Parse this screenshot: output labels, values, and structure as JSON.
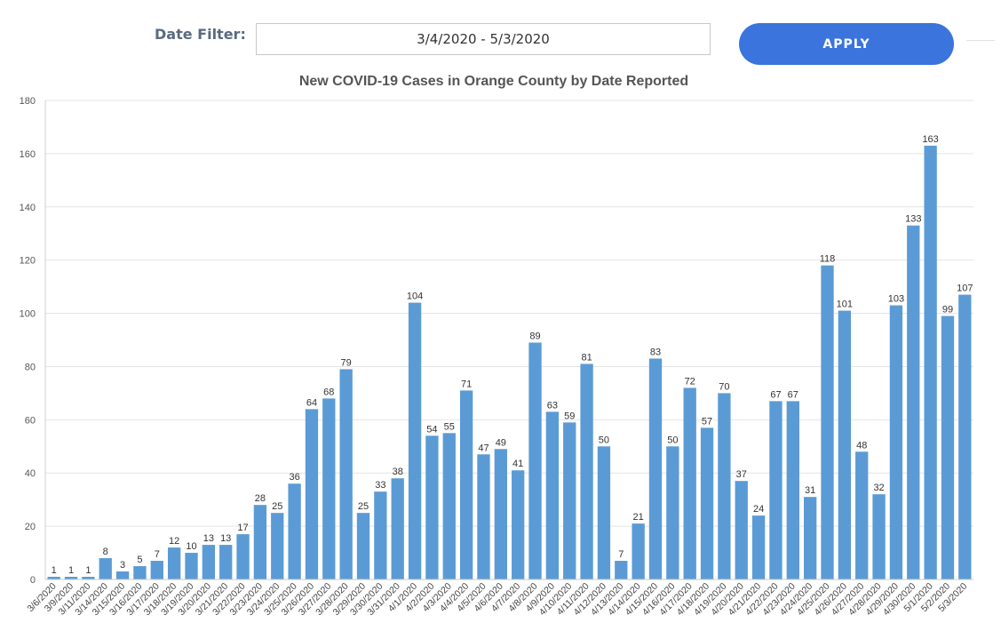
{
  "filter": {
    "label": "Date Filter:",
    "value": "3/4/2020 - 5/3/2020",
    "apply_label": "APPLY"
  },
  "colors": {
    "bar": "#5b9bd5",
    "button": "#3a74dc",
    "grid": "#e4e4e4"
  },
  "chart_data": {
    "type": "bar",
    "title": "New COVID-19 Cases in Orange County by Date Reported",
    "xlabel": "",
    "ylabel": "",
    "ylim": [
      0,
      180
    ],
    "yticks": [
      0,
      20,
      40,
      60,
      80,
      100,
      120,
      140,
      160,
      180
    ],
    "grid": true,
    "categories": [
      "3/6/2020",
      "3/9/2020",
      "3/11/2020",
      "3/14/2020",
      "3/15/2020",
      "3/16/2020",
      "3/17/2020",
      "3/18/2020",
      "3/19/2020",
      "3/20/2020",
      "3/21/2020",
      "3/22/2020",
      "3/23/2020",
      "3/24/2020",
      "3/25/2020",
      "3/26/2020",
      "3/27/2020",
      "3/28/2020",
      "3/29/2020",
      "3/30/2020",
      "3/31/2020",
      "4/1/2020",
      "4/2/2020",
      "4/3/2020",
      "4/4/2020",
      "4/5/2020",
      "4/6/2020",
      "4/7/2020",
      "4/8/2020",
      "4/9/2020",
      "4/10/2020",
      "4/11/2020",
      "4/12/2020",
      "4/13/2020",
      "4/14/2020",
      "4/15/2020",
      "4/16/2020",
      "4/17/2020",
      "4/18/2020",
      "4/19/2020",
      "4/20/2020",
      "4/21/2020",
      "4/22/2020",
      "4/23/2020",
      "4/24/2020",
      "4/25/2020",
      "4/26/2020",
      "4/27/2020",
      "4/28/2020",
      "4/29/2020",
      "4/30/2020",
      "5/1/2020",
      "5/2/2020",
      "5/3/2020"
    ],
    "values": [
      1,
      1,
      1,
      8,
      3,
      5,
      7,
      12,
      10,
      13,
      13,
      17,
      28,
      25,
      36,
      64,
      68,
      79,
      25,
      33,
      38,
      104,
      54,
      55,
      71,
      47,
      49,
      41,
      89,
      63,
      59,
      81,
      50,
      7,
      21,
      83,
      50,
      72,
      57,
      70,
      37,
      24,
      67,
      67,
      31,
      118,
      101,
      48,
      32,
      103,
      133,
      163,
      99,
      107
    ]
  }
}
